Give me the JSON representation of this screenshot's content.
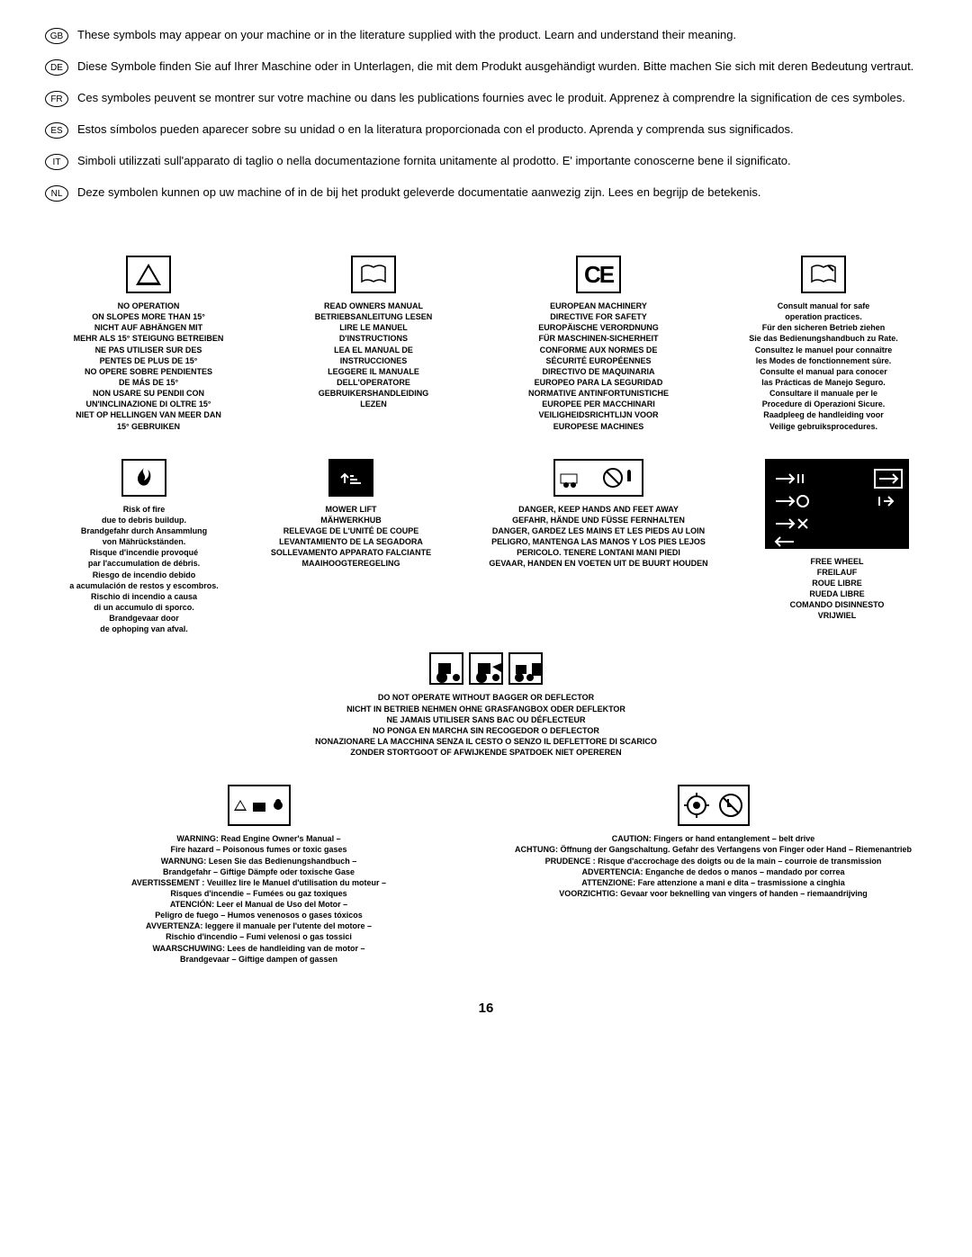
{
  "langs": [
    {
      "tag": "GB",
      "text": "These symbols may appear on your machine or in the literature supplied with the product. Learn and understand their meaning."
    },
    {
      "tag": "DE",
      "text": "Diese Symbole finden Sie auf Ihrer Maschine oder in Unterlagen, die mit dem Produkt ausgehändigt wurden. Bitte machen Sie sich mit deren Bedeutung vertraut."
    },
    {
      "tag": "FR",
      "text": "Ces symboles peuvent se montrer sur votre machine ou dans les publications fournies avec le produit. Apprenez à comprendre la signification de ces symboles."
    },
    {
      "tag": "ES",
      "text": "Estos símbolos pueden aparecer sobre su unidad o en la literatura proporcionada con el producto. Aprenda y comprenda sus significados."
    },
    {
      "tag": "IT",
      "text": "Simboli utilizzati sull'apparato di taglio o nella documentazione fornita unitamente al prodotto. E' importante conoscerne bene il significato."
    },
    {
      "tag": "NL",
      "text": "Deze symbolen kunnen op uw machine of in de bij het produkt geleverde documentatie aanwezig zijn. Lees en begrijp de betekenis."
    }
  ],
  "row1": {
    "slope": [
      "NO OPERATION",
      "ON SLOPES MORE THAN 15°",
      "NICHT AUF ABHÄNGEN MIT",
      "MEHR ALS 15° STEIGUNG BETREIBEN",
      "NE PAS UTILISER SUR DES",
      "PENTES DE PLUS DE 15°",
      "NO OPERE SOBRE PENDIENTES",
      "DE MÁS DE 15°",
      "NON USARE SU PENDII CON",
      "UN'INCLINAZIONE DI OLTRE 15°",
      "NIET OP HELLINGEN VAN MEER DAN",
      "15° GEBRUIKEN"
    ],
    "manual": [
      "READ OWNERS MANUAL",
      "BETRIEBSANLEITUNG LESEN",
      "LIRE LE MANUEL",
      "D'INSTRUCTIONS",
      "LEA EL MANUAL DE",
      "INSTRUCCIONES",
      "LEGGERE IL MANUALE",
      "DELL'OPERATORE",
      "GEBRUIKERSHANDLEIDING",
      "LEZEN"
    ],
    "ce": [
      "EUROPEAN MACHINERY",
      "DIRECTIVE FOR SAFETY",
      "EUROPÄISCHE VERORDNUNG",
      "FÜR MASCHINEN-SICHERHEIT",
      "CONFORME AUX NORMES DE",
      "SÉCURITÉ EUROPÉENNES",
      "DIRECTIVO DE MAQUINARIA",
      "EUROPEO PARA LA SEGURIDAD",
      "NORMATIVE ANTINFORTUNISTICHE",
      "EUROPEE PER MACCHINARI",
      "VEILIGHEIDSRICHTLIJN VOOR",
      "EUROPESE MACHINES"
    ],
    "safe": [
      "Consult manual for safe",
      "operation practices.",
      "Für den sicheren Betrieb ziehen",
      "Sie das Bedienungshandbuch zu Rate.",
      "Consultez le manuel pour connaître",
      "les Modes de fonctionnement sûre.",
      "Consulte el manual para conocer",
      "las Prácticas de Manejo Seguro.",
      "Consultare il manuale per le",
      "Procedure di Operazioni Sicure.",
      "Raadpleeg de handleiding voor",
      "Veilige gebruiksprocedures."
    ]
  },
  "row2": {
    "fire": [
      "Risk of fire",
      "due to debris buildup.",
      "Brandgefahr durch Ansammlung",
      "von Mährückständen.",
      "Risque d'incendie provoqué",
      "par l'accumulation de débris.",
      "Riesgo de incendio debido",
      "a acumulación de restos y escombros.",
      "Rischio di incendio a causa",
      "di un accumulo di sporco.",
      "Brandgevaar door",
      "de ophoping van afval."
    ],
    "mowerlift": [
      "MOWER LIFT",
      "MÄHWERKHUB",
      "RELEVAGE DE L'UNITÉ DE COUPE",
      "LEVANTAMIENTO DE LA SEGADORA",
      "SOLLEVAMENTO APPARATO FALCIANTE",
      "MAAIHOOGTEREGELING"
    ],
    "danger": [
      "DANGER, KEEP HANDS AND FEET AWAY",
      "GEFAHR, HÄNDE UND FÜSSE FERNHALTEN",
      "DANGER, GARDEZ LES MAINS ET LES PIEDS AU LOIN",
      "PELIGRO, MANTENGA LAS MANOS Y LOS PIES LEJOS",
      "PERICOLO. TENERE LONTANI MANI PIEDI",
      "GEVAAR, HANDEN EN VOETEN UIT DE BUURT HOUDEN"
    ],
    "freewheel": [
      "FREE WHEEL",
      "FREILAUF",
      "ROUE LIBRE",
      "RUEDA LIBRE",
      "COMANDO DISINNESTO",
      "VRIJWIEL"
    ]
  },
  "bagger": [
    "DO NOT OPERATE WITHOUT BAGGER OR DEFLECTOR",
    "NICHT IN BETRIEB NEHMEN OHNE GRASFANGBOX ODER DEFLEKTOR",
    "NE JAMAIS UTILISER SANS BAC OU DÉFLECTEUR",
    "NO PONGA EN MARCHA SIN RECOGEDOR O DEFLECTOR",
    "NONAZIONARE LA MACCHINA SENZA IL CESTO O SENZO IL DEFLETTORE DI SCARICO",
    "ZONDER STORTGOOT OF AFWIJKENDE SPATDOEK NIET OPEREREN"
  ],
  "row3": {
    "warning": [
      "WARNING: Read Engine Owner's Manual –",
      "Fire hazard – Poisonous fumes or toxic gases",
      "WARNUNG: Lesen Sie das Bedienungshandbuch –",
      "Brandgefahr – Giftige Dämpfe oder toxische Gase",
      "AVERTISSEMENT : Veuillez lire le Manuel d'utilisation du moteur –",
      "Risques d'incendie – Fumées ou gaz toxiques",
      "ATENCIÓN: Leer el Manual de Uso del Motor –",
      "Peligro de fuego – Humos venenosos o gases tóxicos",
      "AVVERTENZA: leggere il manuale per l'utente del motore –",
      "Rischio d'incendio – Fumi velenosi o gas tossici",
      "WAARSCHUWING: Lees de handleiding van de motor –",
      "Brandgevaar – Giftige dampen of gassen"
    ],
    "caution": [
      "CAUTION: Fingers or hand entanglement – belt drive",
      "ACHTUNG: Öffnung der Gangschaltung. Gefahr des Verfangens von Finger oder Hand – Riemenantrieb",
      "PRUDENCE : Risque d'accrochage des doigts ou de la main – courroie de transmission",
      "ADVERTENCIA: Enganche de dedos o manos – mandado por correa",
      "ATTENZIONE: Fare attenzione a mani e dita – trasmissione a cinghia",
      "VOORZICHTIG: Gevaar voor beknelling van vingers of handen – riemaandrijving"
    ]
  },
  "pagenum": "16"
}
